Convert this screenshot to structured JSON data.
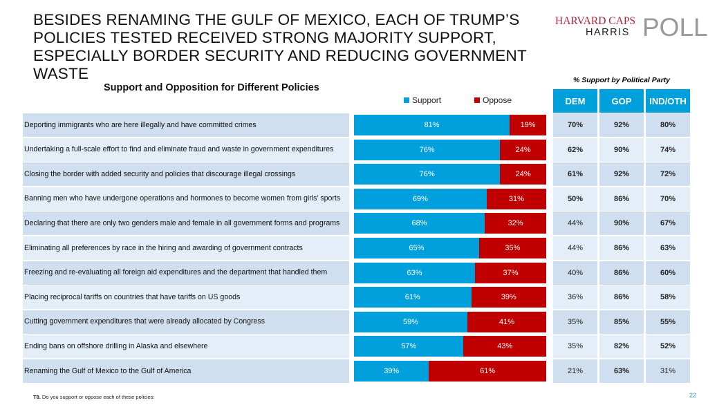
{
  "title": "BESIDES RENAMING THE GULF OF MEXICO, EACH OF TRUMP’S POLICIES TESTED RECEIVED STRONG MAJORITY SUPPORT, ESPECIALLY BORDER SECURITY AND REDUCING GOVERNMENT WASTE",
  "logo": {
    "line1": "HARVARD CAPS",
    "line2": "HARRIS",
    "line3": "POLL"
  },
  "chart_data": {
    "type": "bar",
    "title": "Support and Opposition for Different Policies",
    "stacked": true,
    "xlim": [
      0,
      100
    ],
    "categories": [
      "Deporting immigrants who are here illegally and have committed crimes",
      "Undertaking a full-scale effort to find and eliminate fraud and waste in government expenditures",
      "Closing the border with added security and policies that discourage illegal crossings",
      "Banning men who have undergone operations and hormones to become women from girls’ sports",
      "Declaring that there are only two genders male and female in all government forms and programs",
      "Eliminating all preferences by race in the hiring and awarding of government contracts",
      "Freezing and re-evaluating all foreign aid expenditures and the department that handled them",
      "Placing reciprocal tariffs on countries that have tariffs on US goods",
      "Cutting government expenditures that were already allocated by Congress",
      "Ending bans on offshore drilling in Alaska and elsewhere",
      "Renaming the Gulf of Mexico to the Gulf of America"
    ],
    "series": [
      {
        "name": "Support",
        "color": "#00a0dc",
        "values": [
          81,
          76,
          76,
          69,
          68,
          65,
          63,
          61,
          59,
          57,
          39
        ]
      },
      {
        "name": "Oppose",
        "color": "#c00000",
        "values": [
          19,
          24,
          24,
          31,
          32,
          35,
          37,
          39,
          41,
          43,
          61
        ]
      }
    ],
    "legend": "top"
  },
  "party_table": {
    "title": "% Support by Political Party",
    "headers": [
      "DEM",
      "GOP",
      "IND/OTH"
    ],
    "rows": [
      [
        70,
        92,
        80
      ],
      [
        62,
        90,
        74
      ],
      [
        61,
        92,
        72
      ],
      [
        50,
        86,
        70
      ],
      [
        44,
        90,
        67
      ],
      [
        44,
        86,
        63
      ],
      [
        40,
        86,
        60
      ],
      [
        36,
        86,
        58
      ],
      [
        35,
        85,
        55
      ],
      [
        35,
        82,
        52
      ],
      [
        21,
        63,
        31
      ]
    ]
  },
  "colors": {
    "row_dark": "#cfdff0",
    "row_light": "#e4eef8",
    "header": "#00a0dc"
  },
  "footnote": {
    "q": "T8.",
    "text": " Do you support or oppose each of these policies:"
  },
  "page_number": "22"
}
